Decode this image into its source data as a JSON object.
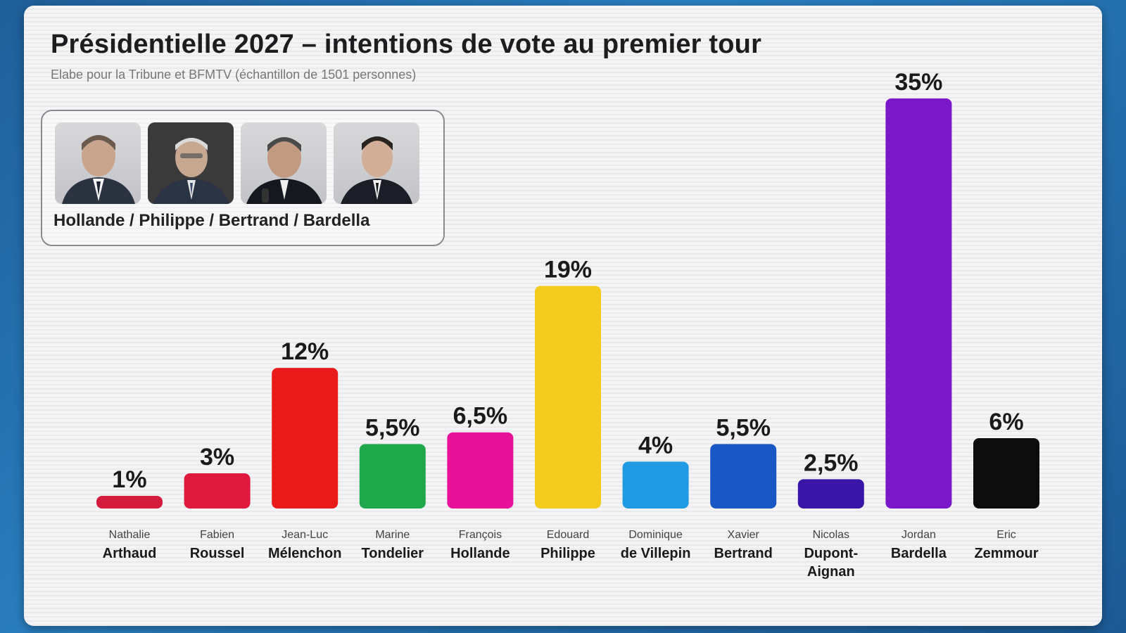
{
  "chart_data": {
    "type": "bar",
    "title": "Présidentielle 2027 – intentions de vote au premier tour",
    "subtitle": "Elabe pour la Tribune et  BFMTV (échantillon de 1501 personnes)",
    "xlabel": "",
    "ylabel": "",
    "ylim": [
      0,
      35
    ],
    "grid": false,
    "categories": [
      {
        "first": "Nathalie",
        "last": [
          "Arthaud"
        ]
      },
      {
        "first": "Fabien",
        "last": [
          "Roussel"
        ]
      },
      {
        "first": "Jean-Luc",
        "last": [
          "Mélenchon"
        ]
      },
      {
        "first": "Marine",
        "last": [
          "Tondelier"
        ]
      },
      {
        "first": "François",
        "last": [
          "Hollande"
        ]
      },
      {
        "first": "Edouard",
        "last": [
          "Philippe"
        ]
      },
      {
        "first": "Dominique",
        "last": [
          "de Villepin"
        ]
      },
      {
        "first": "Xavier",
        "last": [
          "Bertrand"
        ]
      },
      {
        "first": "Nicolas",
        "last": [
          "Dupont-",
          "Aignan"
        ]
      },
      {
        "first": "Jordan",
        "last": [
          "Bardella"
        ]
      },
      {
        "first": "Eric",
        "last": [
          "Zemmour"
        ]
      }
    ],
    "values": [
      1,
      3,
      12,
      5.5,
      6.5,
      19,
      4,
      5.5,
      2.5,
      35,
      6
    ],
    "value_labels": [
      "1%",
      "3%",
      "12%",
      "5,5%",
      "6,5%",
      "19%",
      "4%",
      "5,5%",
      "2,5%",
      "35%",
      "6%"
    ],
    "colors": [
      "#d41c3c",
      "#e0193f",
      "#e81a1a",
      "#1ea84b",
      "#e8129a",
      "#f2cb1d",
      "#1f9ae3",
      "#1857c4",
      "#3a16a8",
      "#7a17c8",
      "#0d0d0d"
    ]
  },
  "legend": {
    "names": "Hollande / Philippe / Bertrand / Bardella",
    "photos": [
      "portrait-hollande",
      "portrait-philippe",
      "portrait-bertrand",
      "portrait-bardella"
    ]
  }
}
